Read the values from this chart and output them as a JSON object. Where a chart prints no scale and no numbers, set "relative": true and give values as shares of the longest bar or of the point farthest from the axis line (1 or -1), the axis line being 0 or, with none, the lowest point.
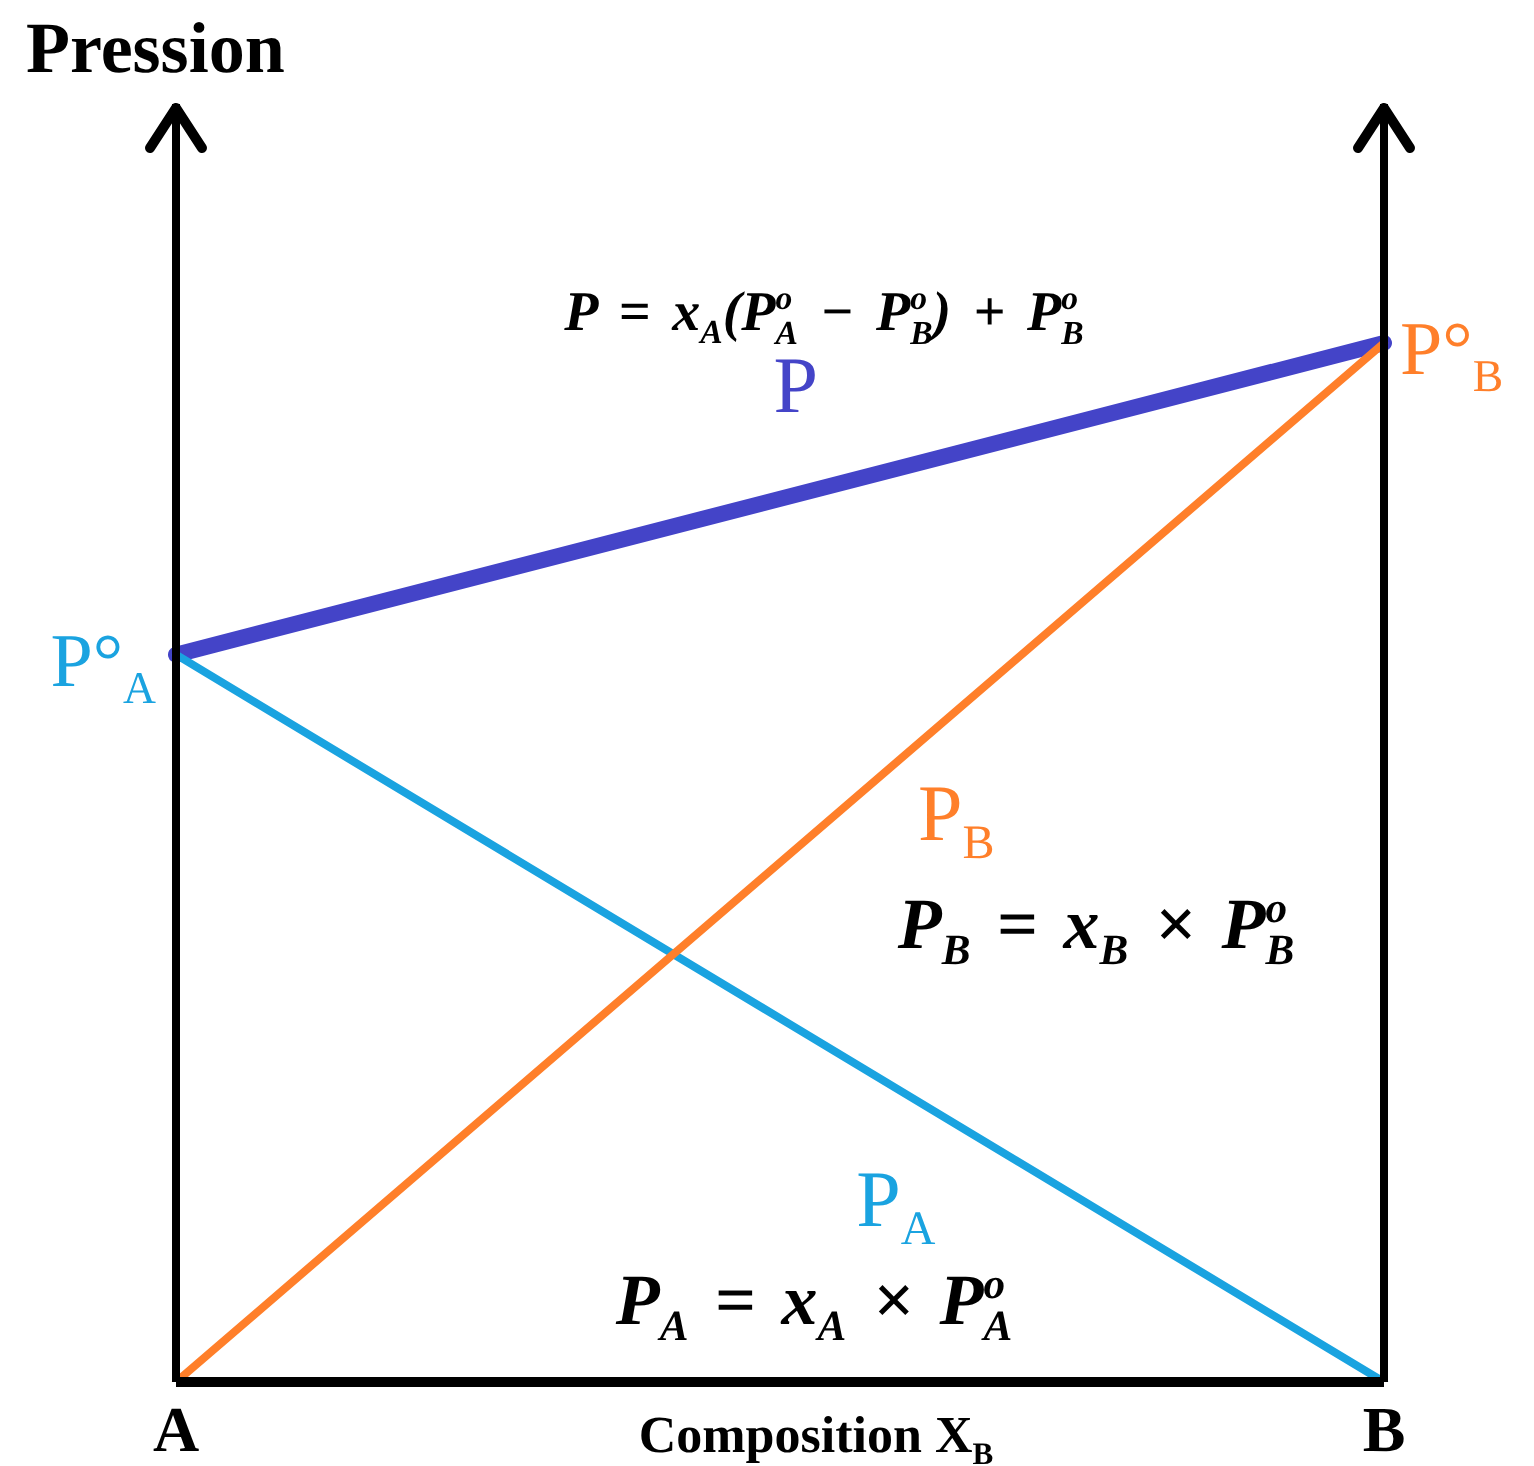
{
  "chart_data": {
    "type": "line",
    "relative": true,
    "xlabel": "Composition X$_{B}$",
    "ylabel": "Pression",
    "categories": [
      "A",
      "B"
    ],
    "series": [
      {
        "name": "P",
        "color": "#4444c8",
        "values": [
          0.7,
          1
        ]
      },
      {
        "name": "P$_{A}$",
        "color": "#1aa3e0",
        "values": [
          0.7,
          0
        ]
      },
      {
        "name": "P$_{B}$",
        "color": "#ff7f2a",
        "values": [
          0,
          1
        ]
      }
    ],
    "annotations": [
      {
        "text": "P°$_{A}$",
        "x": "A",
        "y": 0.7
      },
      {
        "text": "P°$_{B}$",
        "x": "B",
        "y": 1
      },
      "P = x$_{A}$(P$^{o}$$_{A}$ − P$^{o}$$_{B}$) + P$^{o}$$_{B}$",
      "P$_{B}$ = x$_{B}$ × P$^{o}$$_{B}$",
      "P$_{A}$ = x$_{A}$ × P$^{o}$$_{A}$"
    ]
  }
}
